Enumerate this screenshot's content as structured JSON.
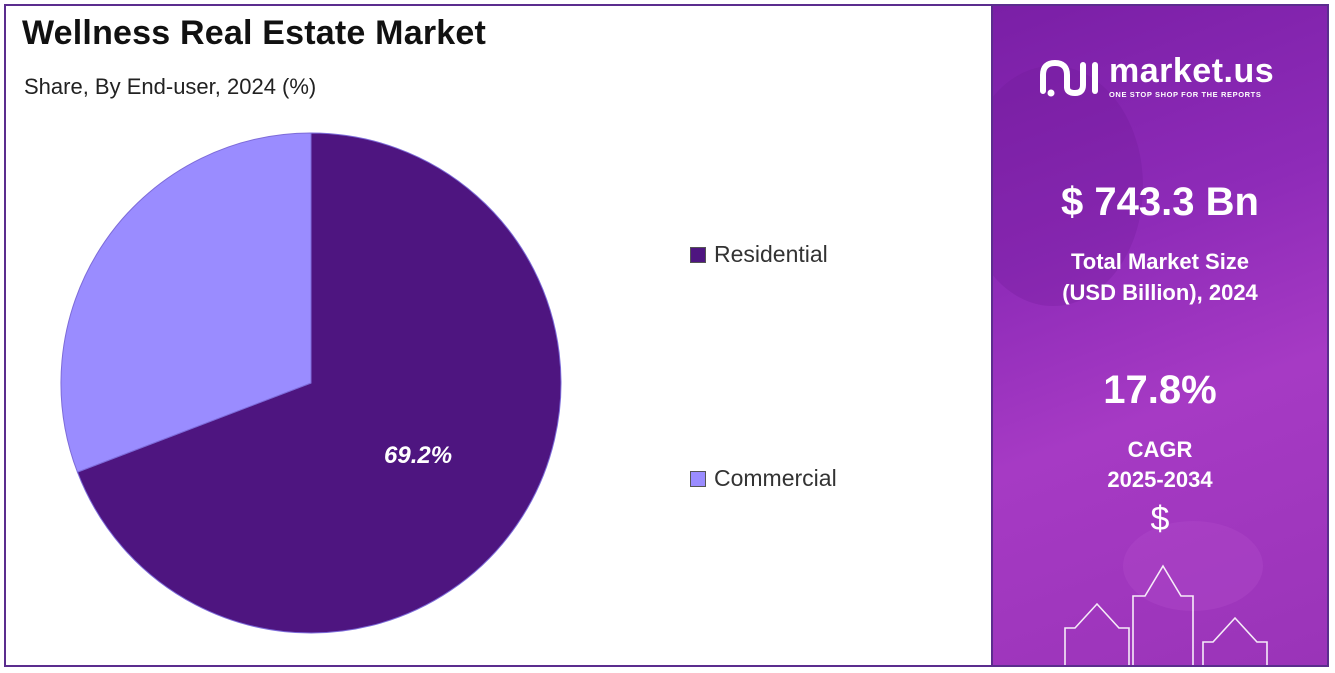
{
  "chart_data": {
    "type": "pie",
    "title": "Wellness Real Estate Market",
    "subtitle": "Share, By End-user, 2024 (%)",
    "slices": [
      {
        "label": "Residential",
        "value": 69.2,
        "color": "#4e1580",
        "data_label": "69.2%"
      },
      {
        "label": "Commercial",
        "value": 30.8,
        "color": "#9a8cff",
        "data_label": ""
      }
    ],
    "legend_position": "right"
  },
  "panel": {
    "brand_name": "market.us",
    "brand_tagline": "ONE STOP SHOP FOR THE REPORTS",
    "market_size_value": "$ 743.3 Bn",
    "market_size_label_line1": "Total Market Size",
    "market_size_label_line2": "(USD Billion), 2024",
    "cagr_value": "17.8%",
    "cagr_label_line1": "CAGR",
    "cagr_label_line2": "2025-2034",
    "dollar_symbol": "$",
    "logo_icon": "market-us-logo-icon",
    "decor_icon": "growth-arrows-icon"
  }
}
